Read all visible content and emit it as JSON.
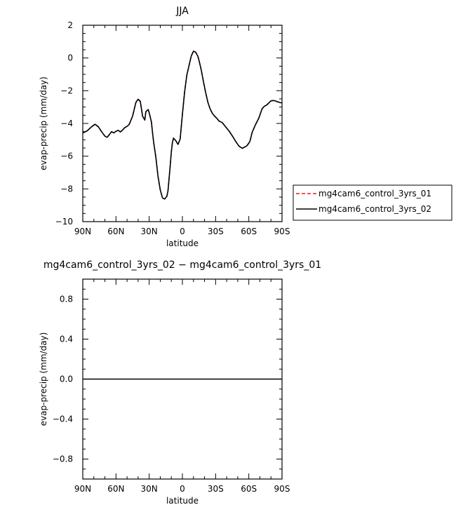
{
  "chart_data": [
    {
      "type": "line",
      "title": "JJA",
      "xlabel": "latitude",
      "ylabel": "evap-precip (mm/day)",
      "xlim": [
        -90,
        90
      ],
      "ylim": [
        -10,
        2
      ],
      "x_tick_values": [
        -90,
        -60,
        -30,
        0,
        30,
        60,
        90
      ],
      "x_tick_labels": [
        "90N",
        "60N",
        "30N",
        "0",
        "30S",
        "60S",
        "90S"
      ],
      "y_tick_values": [
        -10,
        -8,
        -6,
        -4,
        -2,
        0,
        2
      ],
      "y_tick_labels": [
        "−10",
        "−8",
        "−6",
        "−4",
        "−2",
        "0",
        "2"
      ],
      "grid": false,
      "legend_position": "right",
      "x": [
        -90,
        -86,
        -82,
        -79,
        -76,
        -73,
        -70,
        -68,
        -66,
        -64,
        -62,
        -60,
        -58,
        -56,
        -54,
        -52,
        -50,
        -48,
        -45,
        -42,
        -40,
        -38,
        -36,
        -34,
        -33,
        -31,
        -30,
        -28,
        -27,
        -26,
        -24,
        -22,
        -20,
        -18,
        -16,
        -14,
        -13,
        -11,
        -10,
        -9,
        -8,
        -6,
        -4,
        -2,
        0,
        2,
        4,
        6,
        8,
        10,
        12,
        14,
        15,
        17,
        19,
        21,
        23,
        25,
        27,
        29,
        31,
        33,
        36,
        39,
        42,
        45,
        48,
        51,
        54,
        56,
        58,
        59,
        61,
        63,
        66,
        69,
        72,
        74,
        76,
        78,
        80,
        82,
        84,
        86,
        88,
        90
      ],
      "series": [
        {
          "name": "mg4cam6_control_3yrs_01",
          "color": "#e02020",
          "dash": "dashed",
          "values": [
            -4.58,
            -4.45,
            -4.2,
            -4.05,
            -4.2,
            -4.5,
            -4.78,
            -4.85,
            -4.68,
            -4.5,
            -4.58,
            -4.48,
            -4.42,
            -4.52,
            -4.4,
            -4.25,
            -4.18,
            -4.05,
            -3.55,
            -2.72,
            -2.52,
            -2.65,
            -3.55,
            -3.8,
            -3.28,
            -3.15,
            -3.35,
            -3.9,
            -4.55,
            -5.15,
            -6.05,
            -7.25,
            -8.05,
            -8.55,
            -8.62,
            -8.45,
            -8.1,
            -6.6,
            -5.75,
            -5.15,
            -4.9,
            -5.05,
            -5.28,
            -4.95,
            -3.45,
            -2.05,
            -1.05,
            -0.45,
            0.12,
            0.42,
            0.35,
            0.1,
            -0.15,
            -0.72,
            -1.45,
            -2.1,
            -2.7,
            -3.1,
            -3.38,
            -3.55,
            -3.68,
            -3.85,
            -3.95,
            -4.2,
            -4.45,
            -4.75,
            -5.08,
            -5.38,
            -5.52,
            -5.45,
            -5.38,
            -5.3,
            -5.1,
            -4.55,
            -4.08,
            -3.68,
            -3.1,
            -2.95,
            -2.88,
            -2.75,
            -2.62,
            -2.6,
            -2.62,
            -2.68,
            -2.72,
            -2.75
          ]
        },
        {
          "name": "mg4cam6_control_3yrs_02",
          "color": "#000000",
          "dash": "solid",
          "values": [
            -4.58,
            -4.45,
            -4.2,
            -4.05,
            -4.2,
            -4.5,
            -4.78,
            -4.85,
            -4.68,
            -4.5,
            -4.58,
            -4.48,
            -4.42,
            -4.52,
            -4.4,
            -4.25,
            -4.18,
            -4.05,
            -3.55,
            -2.72,
            -2.52,
            -2.65,
            -3.55,
            -3.8,
            -3.28,
            -3.15,
            -3.35,
            -3.9,
            -4.55,
            -5.15,
            -6.05,
            -7.25,
            -8.05,
            -8.55,
            -8.62,
            -8.45,
            -8.1,
            -6.6,
            -5.75,
            -5.15,
            -4.9,
            -5.05,
            -5.28,
            -4.95,
            -3.45,
            -2.05,
            -1.05,
            -0.45,
            0.12,
            0.42,
            0.35,
            0.1,
            -0.15,
            -0.72,
            -1.45,
            -2.1,
            -2.7,
            -3.1,
            -3.38,
            -3.55,
            -3.68,
            -3.85,
            -3.95,
            -4.2,
            -4.45,
            -4.75,
            -5.08,
            -5.38,
            -5.52,
            -5.45,
            -5.38,
            -5.3,
            -5.1,
            -4.55,
            -4.08,
            -3.68,
            -3.1,
            -2.95,
            -2.88,
            -2.75,
            -2.62,
            -2.6,
            -2.62,
            -2.68,
            -2.72,
            -2.75
          ]
        }
      ]
    },
    {
      "type": "line",
      "title": "mg4cam6_control_3yrs_02 − mg4cam6_control_3yrs_01",
      "xlabel": "latitude",
      "ylabel": "evap-precip (mm/day)",
      "xlim": [
        -90,
        90
      ],
      "ylim": [
        -1,
        1
      ],
      "x_tick_values": [
        -90,
        -60,
        -30,
        0,
        30,
        60,
        90
      ],
      "x_tick_labels": [
        "90N",
        "60N",
        "30N",
        "0",
        "30S",
        "60S",
        "90S"
      ],
      "y_tick_values": [
        -0.8,
        -0.4,
        0.0,
        0.4,
        0.8
      ],
      "y_tick_labels": [
        "−0.8",
        "−0.4",
        "0.0",
        "0.4",
        "0.8"
      ],
      "grid": false,
      "x": [
        -90,
        90
      ],
      "series": [
        {
          "color": "#000000",
          "dash": "solid",
          "values": [
            0,
            0
          ]
        }
      ]
    }
  ]
}
